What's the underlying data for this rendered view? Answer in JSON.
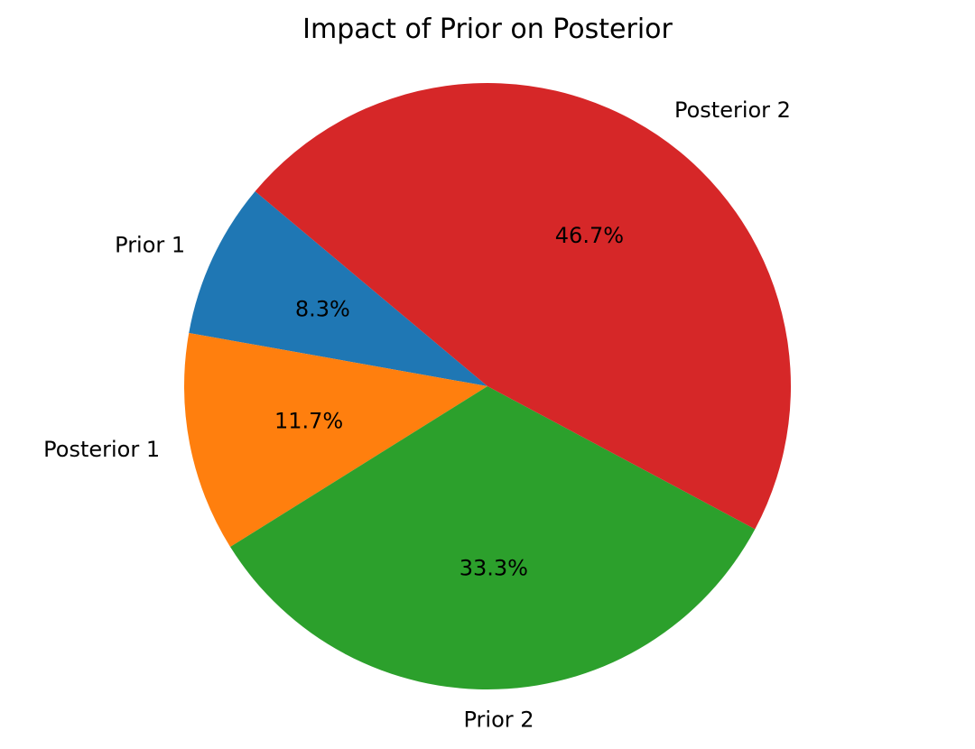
{
  "chart_data": {
    "type": "pie",
    "title": "Impact of Prior on Posterior",
    "start_angle_deg": 140,
    "direction": "counterclockwise",
    "slices": [
      {
        "label": "Prior 1",
        "value": 8.3,
        "pct_label": "8.3%",
        "color": "#1f77b4"
      },
      {
        "label": "Posterior 1",
        "value": 11.7,
        "pct_label": "11.7%",
        "color": "#ff7f0e"
      },
      {
        "label": "Prior 2",
        "value": 33.3,
        "pct_label": "33.3%",
        "color": "#2ca02c"
      },
      {
        "label": "Posterior 2",
        "value": 46.7,
        "pct_label": "46.7%",
        "color": "#d62728"
      }
    ]
  }
}
